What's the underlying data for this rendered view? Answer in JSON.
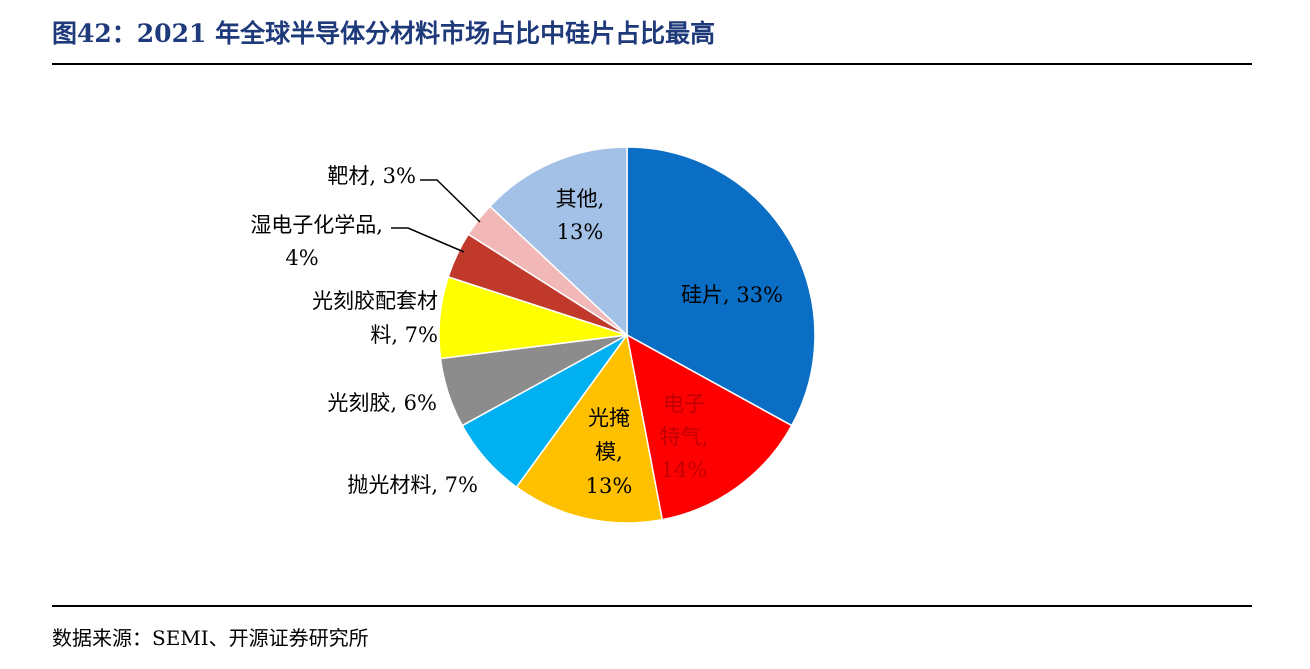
{
  "header": {
    "title": "图42：2021 年全球半导体分材料市场占比中硅片占比最高"
  },
  "footer": {
    "source": "数据来源：SEMI、开源证券研究所"
  },
  "colors": {
    "title": "#1f3a7a",
    "slices": [
      "#0a6fc4",
      "#ff0000",
      "#ffc000",
      "#00b0f0",
      "#8c8c8c",
      "#ffff00",
      "#c0392b",
      "#f2b8b8",
      "#a3c0e6"
    ]
  },
  "chart_data": {
    "type": "pie",
    "start_angle": "12 o'clock",
    "direction": "clockwise",
    "slices": [
      {
        "name": "硅片",
        "value": 33,
        "label_lines": [
          "硅片, 33%"
        ],
        "label_position": "inside"
      },
      {
        "name": "电子特气",
        "value": 14,
        "label_lines": [
          "电子",
          "特气,",
          "14%"
        ],
        "label_position": "inside"
      },
      {
        "name": "光掩模",
        "value": 13,
        "label_lines": [
          "光掩",
          "模,",
          "13%"
        ],
        "label_position": "inside"
      },
      {
        "name": "抛光材料",
        "value": 7,
        "label_lines": [
          "抛光材料, 7%"
        ],
        "label_position": "outside"
      },
      {
        "name": "光刻胶",
        "value": 6,
        "label_lines": [
          "光刻胶, 6%"
        ],
        "label_position": "outside"
      },
      {
        "name": "光刻胶配套材料",
        "value": 7,
        "label_lines": [
          "光刻胶配套材",
          "料, 7%"
        ],
        "label_position": "outside"
      },
      {
        "name": "湿电子化学品",
        "value": 4,
        "label_lines": [
          "湿电子化学品,",
          "4%"
        ],
        "label_position": "outside-leader"
      },
      {
        "name": "靶材",
        "value": 3,
        "label_lines": [
          "靶材, 3%"
        ],
        "label_position": "outside-leader"
      },
      {
        "name": "其他",
        "value": 13,
        "label_lines": [
          "其他,",
          "13%"
        ],
        "label_position": "inside"
      }
    ]
  }
}
